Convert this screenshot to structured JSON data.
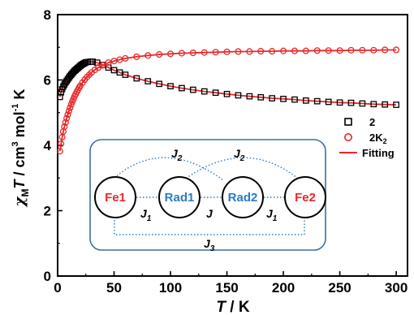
{
  "chart_data": {
    "type": "scatter",
    "x_axis": {
      "label_italic": "T",
      "label_rest": " / K",
      "min": 0,
      "max": 310,
      "ticks": [
        0,
        50,
        100,
        150,
        200,
        250,
        300
      ]
    },
    "y_axis": {
      "label_chi": "χ",
      "label_sub": "M",
      "label_T": "T",
      "label_unit1": " / cm",
      "label_sup3": "3",
      "label_unit2": " mol",
      "label_supm1": "-1",
      "label_unit3": " K",
      "min": 0,
      "max": 8,
      "ticks": [
        0,
        2,
        4,
        6,
        8
      ]
    },
    "series": [
      {
        "name": "2",
        "marker": "square",
        "color": "#000000",
        "points": [
          [
            2,
            5.48
          ],
          [
            3,
            5.62
          ],
          [
            4,
            5.72
          ],
          [
            5,
            5.8
          ],
          [
            6,
            5.86
          ],
          [
            7,
            5.92
          ],
          [
            8,
            5.97
          ],
          [
            9,
            6.02
          ],
          [
            10,
            6.07
          ],
          [
            11,
            6.12
          ],
          [
            12,
            6.16
          ],
          [
            13,
            6.2
          ],
          [
            14,
            6.24
          ],
          [
            15,
            6.28
          ],
          [
            16,
            6.31
          ],
          [
            17,
            6.34
          ],
          [
            18,
            6.37
          ],
          [
            19,
            6.4
          ],
          [
            20,
            6.43
          ],
          [
            21,
            6.46
          ],
          [
            22,
            6.48
          ],
          [
            23,
            6.5
          ],
          [
            24,
            6.52
          ],
          [
            25,
            6.54
          ],
          [
            27,
            6.55
          ],
          [
            29,
            6.56
          ],
          [
            31,
            6.56
          ],
          [
            35,
            6.53
          ],
          [
            40,
            6.46
          ],
          [
            45,
            6.38
          ],
          [
            50,
            6.3
          ],
          [
            55,
            6.23
          ],
          [
            60,
            6.16
          ],
          [
            70,
            6.05
          ],
          [
            80,
            5.96
          ],
          [
            90,
            5.88
          ],
          [
            100,
            5.81
          ],
          [
            110,
            5.75
          ],
          [
            120,
            5.7
          ],
          [
            130,
            5.65
          ],
          [
            140,
            5.61
          ],
          [
            150,
            5.57
          ],
          [
            160,
            5.53
          ],
          [
            170,
            5.5
          ],
          [
            180,
            5.47
          ],
          [
            190,
            5.44
          ],
          [
            200,
            5.42
          ],
          [
            210,
            5.4
          ],
          [
            220,
            5.37
          ],
          [
            230,
            5.35
          ],
          [
            240,
            5.33
          ],
          [
            250,
            5.31
          ],
          [
            260,
            5.3
          ],
          [
            270,
            5.28
          ],
          [
            280,
            5.26
          ],
          [
            290,
            5.25
          ],
          [
            300,
            5.24
          ]
        ]
      },
      {
        "name": "2K",
        "name_sub": "2",
        "marker": "circle",
        "color": "#e8282a",
        "points": [
          [
            2,
            3.82
          ],
          [
            3,
            4.05
          ],
          [
            4,
            4.25
          ],
          [
            5,
            4.42
          ],
          [
            6,
            4.57
          ],
          [
            7,
            4.7
          ],
          [
            8,
            4.83
          ],
          [
            9,
            4.94
          ],
          [
            10,
            5.05
          ],
          [
            11,
            5.15
          ],
          [
            12,
            5.25
          ],
          [
            13,
            5.34
          ],
          [
            14,
            5.42
          ],
          [
            15,
            5.5
          ],
          [
            16,
            5.57
          ],
          [
            17,
            5.64
          ],
          [
            18,
            5.7
          ],
          [
            19,
            5.76
          ],
          [
            20,
            5.82
          ],
          [
            22,
            5.92
          ],
          [
            24,
            6.01
          ],
          [
            26,
            6.09
          ],
          [
            28,
            6.16
          ],
          [
            30,
            6.23
          ],
          [
            33,
            6.31
          ],
          [
            36,
            6.38
          ],
          [
            40,
            6.45
          ],
          [
            45,
            6.53
          ],
          [
            50,
            6.58
          ],
          [
            55,
            6.62
          ],
          [
            60,
            6.66
          ],
          [
            70,
            6.71
          ],
          [
            80,
            6.75
          ],
          [
            90,
            6.78
          ],
          [
            100,
            6.8
          ],
          [
            110,
            6.82
          ],
          [
            120,
            6.83
          ],
          [
            130,
            6.84
          ],
          [
            140,
            6.85
          ],
          [
            150,
            6.86
          ],
          [
            160,
            6.87
          ],
          [
            170,
            6.87
          ],
          [
            180,
            6.88
          ],
          [
            190,
            6.88
          ],
          [
            200,
            6.89
          ],
          [
            210,
            6.89
          ],
          [
            220,
            6.89
          ],
          [
            230,
            6.9
          ],
          [
            240,
            6.9
          ],
          [
            250,
            6.9
          ],
          [
            260,
            6.91
          ],
          [
            270,
            6.91
          ],
          [
            280,
            6.91
          ],
          [
            290,
            6.92
          ],
          [
            300,
            6.92
          ]
        ]
      }
    ],
    "fit": {
      "name": "Fitting",
      "color": "#e8282a"
    },
    "legend_placement": "right"
  },
  "inset": {
    "nodes": [
      {
        "label": "Fe1",
        "color": "#e8282a"
      },
      {
        "label": "Rad1",
        "color": "#2a7bc4"
      },
      {
        "label": "Rad2",
        "color": "#2a7bc4"
      },
      {
        "label": "Fe2",
        "color": "#e8282a"
      }
    ],
    "couplings": {
      "j2_left": "J",
      "j2_left_sub": "2",
      "j2_right": "J",
      "j2_right_sub": "2",
      "j1_left": "J",
      "j1_left_sub": "1",
      "j_center": "J",
      "j1_right": "J",
      "j1_right_sub": "1",
      "j3": "J",
      "j3_sub": "3"
    },
    "border_color": "#3a6ea5",
    "link_color": "#2a7bc4"
  }
}
